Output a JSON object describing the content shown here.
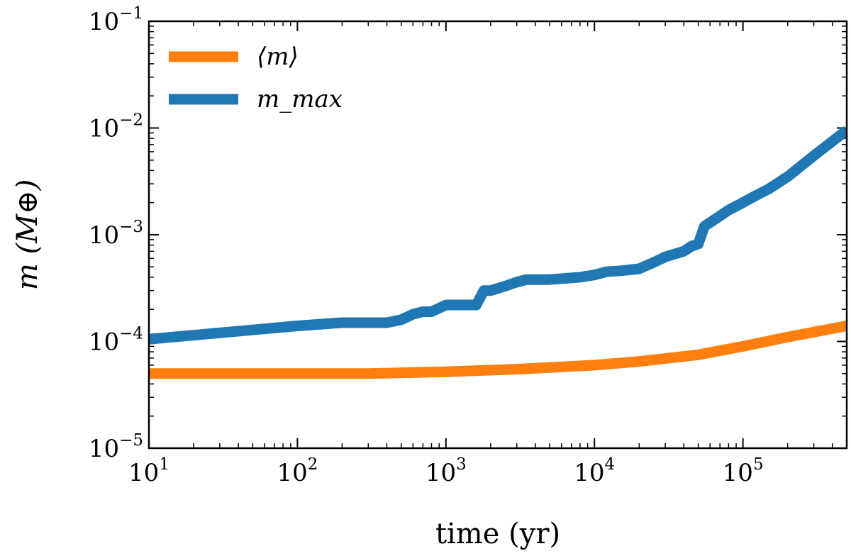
{
  "chart_data": {
    "type": "line",
    "xscale": "log",
    "yscale": "log",
    "xlim": [
      10,
      500000
    ],
    "ylim": [
      1e-05,
      0.1
    ],
    "xlabel": "time (yr)",
    "ylabel": "m (M⊕)",
    "x_ticks": [
      {
        "base": "10",
        "exp": "1",
        "value": 10
      },
      {
        "base": "10",
        "exp": "2",
        "value": 100
      },
      {
        "base": "10",
        "exp": "3",
        "value": 1000
      },
      {
        "base": "10",
        "exp": "4",
        "value": 10000
      },
      {
        "base": "10",
        "exp": "5",
        "value": 100000
      }
    ],
    "y_ticks": [
      {
        "base": "10",
        "exp": "−5",
        "value": 1e-05
      },
      {
        "base": "10",
        "exp": "−4",
        "value": 0.0001
      },
      {
        "base": "10",
        "exp": "−3",
        "value": 0.001
      },
      {
        "base": "10",
        "exp": "−2",
        "value": 0.01
      },
      {
        "base": "10",
        "exp": "−1",
        "value": 0.1
      }
    ],
    "legend_position": "top-left",
    "series": [
      {
        "name": "⟨m⟩",
        "color": "#ff7f0e",
        "x": [
          10,
          30,
          100,
          300,
          1000,
          3000,
          10000,
          20000,
          50000,
          100000,
          200000,
          500000
        ],
        "y": [
          5e-05,
          5e-05,
          5e-05,
          5e-05,
          5.2e-05,
          5.5e-05,
          6e-05,
          6.5e-05,
          7.5e-05,
          9e-05,
          0.00011,
          0.00014
        ]
      },
      {
        "name": "m_max",
        "color": "#1f77b4",
        "x": [
          10,
          100,
          200,
          400,
          500,
          600,
          700,
          800,
          1000,
          1600,
          1800,
          2000,
          2500,
          3000,
          3500,
          5000,
          8000,
          10000,
          12000,
          15000,
          20000,
          25000,
          30000,
          40000,
          45000,
          50000,
          55000,
          60000,
          70000,
          80000,
          100000,
          120000,
          150000,
          200000,
          300000,
          400000,
          450000,
          500000
        ],
        "y": [
          0.000105,
          0.00014,
          0.00015,
          0.00015,
          0.00016,
          0.00018,
          0.00019,
          0.00019,
          0.00022,
          0.00022,
          0.0003,
          0.0003,
          0.00033,
          0.00036,
          0.00038,
          0.00038,
          0.0004,
          0.00042,
          0.00045,
          0.00046,
          0.00048,
          0.00055,
          0.00062,
          0.0007,
          0.00078,
          0.00082,
          0.0012,
          0.0013,
          0.0015,
          0.0017,
          0.002,
          0.0023,
          0.0027,
          0.0035,
          0.0055,
          0.0075,
          0.0085,
          0.0095
        ]
      }
    ]
  }
}
